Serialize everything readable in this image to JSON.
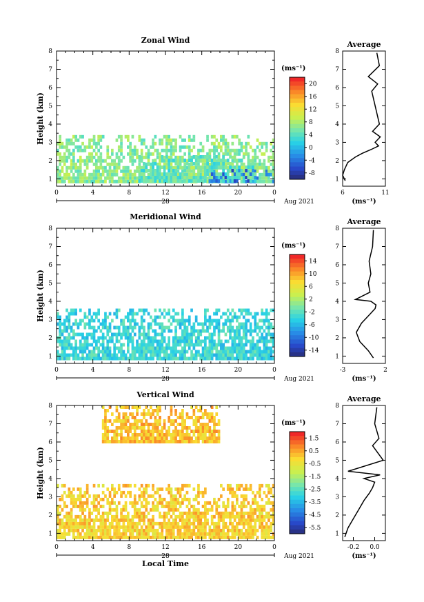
{
  "figure": {
    "date_label": "Aug 2021",
    "day_label": "28",
    "x_label": "Local Time",
    "y_label": "Height (km)",
    "colorbar_unit": "(ms⁻¹)",
    "profile_unit": "(ms⁻¹)"
  },
  "chart_data": [
    {
      "type": "heatmap",
      "title": "Zonal Wind",
      "ylabel": "Height (km)",
      "x_ticks": [
        "0",
        "4",
        "8",
        "12",
        "16",
        "20",
        "0"
      ],
      "y_ticks": [
        "1",
        "2",
        "3",
        "4",
        "5",
        "6",
        "7",
        "8"
      ],
      "xlim": [
        0,
        24
      ],
      "ylim": [
        0.6,
        8
      ],
      "colorbar": {
        "ticks": [
          "20",
          "16",
          "12",
          "8",
          "4",
          "0",
          "-4",
          "-8"
        ],
        "range": [
          -10,
          22
        ]
      },
      "observed_regions": [
        {
          "height_km": [
            0.8,
            3.4
          ],
          "hours": [
            0.0,
            24.0
          ],
          "typical_value": 7
        },
        {
          "height_km": [
            0.8,
            2.3
          ],
          "hours": [
            9.0,
            22.0
          ],
          "typical_value": 5
        }
      ]
    },
    {
      "type": "line",
      "title": "Average",
      "x_ticks": [
        "6",
        "11"
      ],
      "xlim": [
        6,
        11
      ],
      "ylim": [
        0.6,
        8
      ],
      "series": [
        {
          "x": [
            6.3,
            6.0,
            6.2,
            6.6,
            7.5,
            8.3,
            9.3,
            10.2,
            9.8,
            10.4,
            9.5,
            10.3,
            10.0,
            9.7,
            9.4,
            10.1,
            9.0,
            10.3,
            10.0
          ],
          "y": [
            0.9,
            1.2,
            1.5,
            1.9,
            2.2,
            2.4,
            2.6,
            2.8,
            3.0,
            3.3,
            3.6,
            4.0,
            4.6,
            5.2,
            5.8,
            6.2,
            6.6,
            7.2,
            7.9
          ]
        }
      ]
    },
    {
      "type": "heatmap",
      "title": "Meridional Wind",
      "ylabel": "Height (km)",
      "x_ticks": [
        "0",
        "4",
        "8",
        "12",
        "16",
        "20",
        "0"
      ],
      "y_ticks": [
        "1",
        "2",
        "3",
        "4",
        "5",
        "6",
        "7",
        "8"
      ],
      "xlim": [
        0,
        24
      ],
      "ylim": [
        0.6,
        8
      ],
      "colorbar": {
        "ticks": [
          "14",
          "10",
          "6",
          "2",
          "-2",
          "-6",
          "-10",
          "-14"
        ],
        "range": [
          -16,
          16
        ]
      },
      "observed_regions": [
        {
          "height_km": [
            0.8,
            3.6
          ],
          "hours": [
            0.0,
            24.0
          ],
          "typical_value": -3
        }
      ]
    },
    {
      "type": "line",
      "title": "Average",
      "x_ticks": [
        "-3",
        "2"
      ],
      "xlim": [
        -3,
        2
      ],
      "ylim": [
        0.6,
        8
      ],
      "series": [
        {
          "x": [
            0.6,
            0.0,
            -1.0,
            -1.4,
            -0.8,
            0.2,
            0.8,
            0.9,
            0.3,
            -1.5,
            0.2,
            0.0,
            0.3,
            0.1,
            0.5,
            0.6
          ],
          "y": [
            0.9,
            1.3,
            1.8,
            2.3,
            2.8,
            3.3,
            3.6,
            3.8,
            4.0,
            4.1,
            4.5,
            5.0,
            5.5,
            6.2,
            7.0,
            7.9
          ]
        }
      ]
    },
    {
      "type": "heatmap",
      "title": "Vertical Wind",
      "ylabel": "Height (km)",
      "xlabel": "Local Time",
      "x_ticks": [
        "0",
        "4",
        "8",
        "12",
        "16",
        "20",
        "0"
      ],
      "y_ticks": [
        "1",
        "2",
        "3",
        "4",
        "5",
        "6",
        "7",
        "8"
      ],
      "xlim": [
        0,
        24
      ],
      "ylim": [
        0.6,
        8
      ],
      "colorbar": {
        "ticks": [
          "1.5",
          "0.5",
          "-0.5",
          "-1.5",
          "-2.5",
          "-3.5",
          "-4.5",
          "-5.5"
        ],
        "range": [
          -6,
          2
        ]
      },
      "observed_regions": [
        {
          "height_km": [
            0.8,
            3.7
          ],
          "hours": [
            0.0,
            24.0
          ],
          "typical_value": 0.1
        },
        {
          "height_km": [
            6.0,
            8.0
          ],
          "hours": [
            5.0,
            18.0
          ],
          "typical_value": 0.3
        }
      ]
    },
    {
      "type": "line",
      "title": "Average",
      "x_ticks": [
        "-0.2",
        "0.0"
      ],
      "xlim": [
        -0.3,
        0.1
      ],
      "ylim": [
        0.6,
        8
      ],
      "series": [
        {
          "x": [
            -0.28,
            -0.25,
            -0.2,
            -0.15,
            -0.1,
            -0.05,
            -0.02,
            0.0,
            -0.1,
            0.05,
            -0.25,
            0.08,
            -0.02,
            0.04,
            0.0,
            0.02
          ],
          "y": [
            0.8,
            1.3,
            1.8,
            2.3,
            2.8,
            3.2,
            3.5,
            3.8,
            4.0,
            4.2,
            4.4,
            5.0,
            5.8,
            6.2,
            7.0,
            7.9
          ]
        }
      ]
    }
  ]
}
